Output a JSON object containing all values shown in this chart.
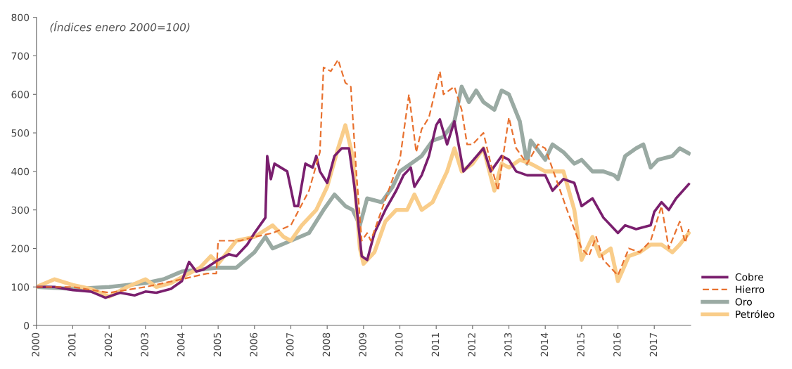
{
  "chart_data": {
    "type": "line",
    "subtitle": "(Índices enero 2000=100)",
    "xlim": [
      2000,
      2018
    ],
    "xticks": [
      2000,
      2001,
      2002,
      2003,
      2004,
      2005,
      2006,
      2007,
      2008,
      2009,
      2010,
      2011,
      2012,
      2013,
      2014,
      2015,
      2016,
      2017
    ],
    "ylim": [
      0,
      800
    ],
    "yticks": [
      0,
      100,
      200,
      300,
      400,
      500,
      600,
      700,
      800
    ],
    "grid": false,
    "legend": "bottom right",
    "marker": "none",
    "series": [
      {
        "name": "Cobre",
        "color": "#7a1f6e",
        "line_style": "solid",
        "x": [
          2000,
          2000.5,
          2001,
          2001.5,
          2001.9,
          2002.3,
          2002.7,
          2003,
          2003.3,
          2003.7,
          2004,
          2004.2,
          2004.4,
          2004.6,
          2005,
          2005.3,
          2005.5,
          2005.8,
          2006,
          2006.3,
          2006.35,
          2006.45,
          2006.55,
          2006.9,
          2007.1,
          2007.2,
          2007.4,
          2007.6,
          2007.7,
          2007.8,
          2008,
          2008.2,
          2008.4,
          2008.6,
          2008.75,
          2008.95,
          2009.1,
          2009.3,
          2009.6,
          2009.9,
          2010.1,
          2010.3,
          2010.4,
          2010.6,
          2010.8,
          2011,
          2011.1,
          2011.3,
          2011.5,
          2011.75,
          2012.3,
          2012.5,
          2012.8,
          2013,
          2013.2,
          2013.5,
          2014,
          2014.2,
          2014.5,
          2014.8,
          2015,
          2015.3,
          2015.6,
          2016,
          2016.2,
          2016.5,
          2016.9,
          2017,
          2017.2,
          2017.4,
          2017.6,
          2017.95
        ],
        "values": [
          100,
          100,
          92,
          88,
          72,
          85,
          78,
          88,
          85,
          95,
          115,
          165,
          140,
          145,
          170,
          185,
          180,
          210,
          240,
          280,
          440,
          380,
          420,
          400,
          310,
          310,
          420,
          410,
          440,
          400,
          370,
          440,
          460,
          460,
          360,
          180,
          170,
          240,
          300,
          350,
          390,
          410,
          360,
          390,
          440,
          520,
          535,
          470,
          530,
          400,
          460,
          400,
          440,
          430,
          400,
          390,
          390,
          350,
          380,
          370,
          310,
          330,
          280,
          240,
          260,
          250,
          260,
          295,
          320,
          300,
          330,
          367
        ]
      },
      {
        "name": "Hierro",
        "color": "#e8712f",
        "line_style": "dashed",
        "x": [
          2000,
          2001,
          2002,
          2003,
          2004,
          2004.7,
          2004.95,
          2005,
          2005.6,
          2006,
          2006.5,
          2007,
          2007.5,
          2007.8,
          2007.9,
          2008.1,
          2008.3,
          2008.5,
          2008.65,
          2008.8,
          2008.95,
          2009.1,
          2009.2,
          2009.5,
          2009.8,
          2010,
          2010.25,
          2010.45,
          2010.6,
          2010.8,
          2011.1,
          2011.2,
          2011.5,
          2011.7,
          2011.85,
          2012,
          2012.3,
          2012.5,
          2012.7,
          2013,
          2013.2,
          2013.5,
          2013.8,
          2014,
          2014.3,
          2014.6,
          2015,
          2015.2,
          2015.4,
          2015.6,
          2016,
          2016.3,
          2016.6,
          2016.9,
          2017.2,
          2017.4,
          2017.7,
          2017.85,
          2017.95
        ],
        "values": [
          100,
          100,
          85,
          100,
          120,
          135,
          135,
          220,
          220,
          230,
          240,
          260,
          350,
          450,
          670,
          660,
          690,
          630,
          620,
          400,
          220,
          240,
          220,
          300,
          380,
          430,
          600,
          450,
          510,
          540,
          660,
          600,
          620,
          560,
          470,
          470,
          500,
          420,
          350,
          540,
          460,
          420,
          470,
          460,
          380,
          300,
          200,
          180,
          230,
          170,
          130,
          200,
          190,
          220,
          310,
          200,
          270,
          215,
          250
        ]
      },
      {
        "name": "Oro",
        "color": "#9aaaa3",
        "line_style": "solid",
        "x": [
          2000,
          2001,
          2002,
          2003,
          2003.5,
          2004,
          2005,
          2005.5,
          2006,
          2006.3,
          2006.5,
          2007,
          2007.5,
          2007.9,
          2008.2,
          2008.5,
          2008.7,
          2008.9,
          2009.1,
          2009.5,
          2009.8,
          2010,
          2010.3,
          2010.6,
          2010.9,
          2011.2,
          2011.5,
          2011.7,
          2011.9,
          2012.1,
          2012.3,
          2012.6,
          2012.8,
          2013,
          2013.3,
          2013.5,
          2013.6,
          2014,
          2014.2,
          2014.5,
          2014.8,
          2015,
          2015.3,
          2015.6,
          2015.9,
          2016,
          2016.2,
          2016.5,
          2016.7,
          2016.9,
          2017.1,
          2017.5,
          2017.7,
          2017.95
        ],
        "values": [
          100,
          95,
          100,
          110,
          120,
          140,
          150,
          150,
          190,
          230,
          200,
          220,
          240,
          300,
          340,
          310,
          300,
          260,
          330,
          320,
          360,
          400,
          420,
          440,
          480,
          490,
          530,
          620,
          580,
          610,
          580,
          560,
          610,
          600,
          530,
          420,
          480,
          430,
          470,
          450,
          420,
          430,
          400,
          400,
          390,
          380,
          440,
          460,
          470,
          410,
          430,
          440,
          460,
          447
        ]
      },
      {
        "name": "Petróleo",
        "color": "#f9cd8a",
        "line_style": "solid",
        "x": [
          2000,
          2000.5,
          2001,
          2001.5,
          2002,
          2002.5,
          2003,
          2003.3,
          2003.7,
          2004,
          2004.5,
          2004.8,
          2005,
          2005.5,
          2006,
          2006.5,
          2006.8,
          2007,
          2007.3,
          2007.7,
          2008,
          2008.3,
          2008.5,
          2008.7,
          2008.9,
          2009,
          2009.3,
          2009.6,
          2009.9,
          2010.2,
          2010.4,
          2010.6,
          2010.9,
          2011.3,
          2011.5,
          2011.7,
          2012,
          2012.3,
          2012.6,
          2012.8,
          2013,
          2013.3,
          2013.6,
          2014,
          2014.5,
          2014.8,
          2015,
          2015.3,
          2015.5,
          2015.8,
          2016,
          2016.3,
          2016.6,
          2016.9,
          2017.2,
          2017.5,
          2017.7,
          2017.95
        ],
        "values": [
          100,
          120,
          105,
          95,
          75,
          100,
          120,
          100,
          110,
          125,
          150,
          180,
          160,
          220,
          230,
          260,
          230,
          220,
          260,
          300,
          360,
          460,
          520,
          440,
          200,
          160,
          190,
          270,
          300,
          300,
          340,
          300,
          320,
          400,
          460,
          400,
          420,
          460,
          350,
          420,
          410,
          430,
          420,
          400,
          400,
          300,
          170,
          230,
          180,
          200,
          115,
          180,
          190,
          210,
          210,
          190,
          210,
          240
        ]
      }
    ]
  }
}
